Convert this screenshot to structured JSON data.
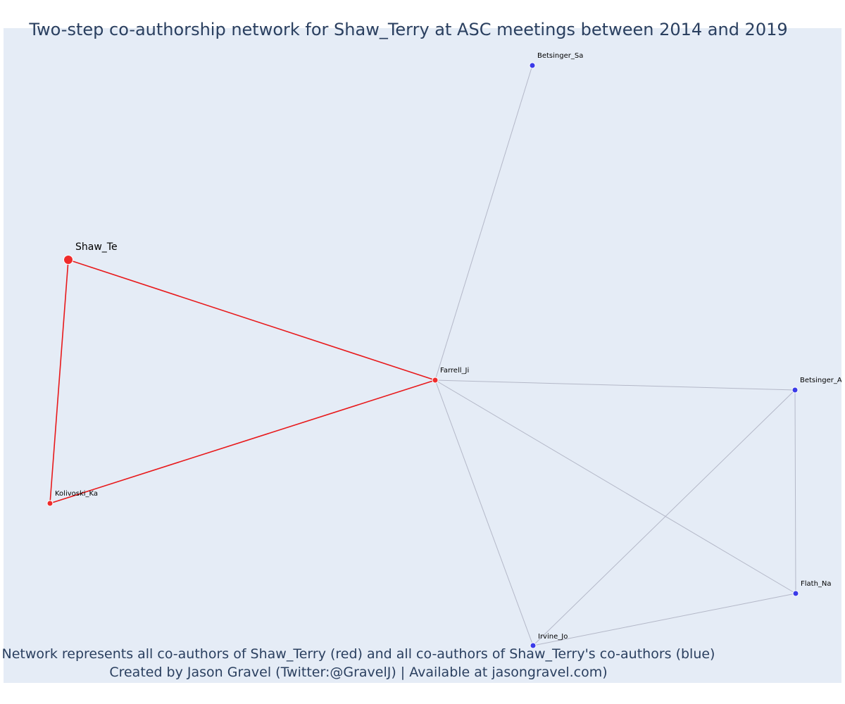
{
  "title": "Two-step co-authorship network for Shaw_Terry at ASC meetings between 2014 and 2019",
  "footer": {
    "line1": "Network represents all co-authors of Shaw_Terry (red) and all co-authors of Shaw_Terry's co-authors (blue)",
    "line2": "Created by Jason Gravel (Twitter:@GravelJ) | Available at jasongravel.com)"
  },
  "colors": {
    "background": "#e5ecf6",
    "focal": "#ef2b2b",
    "coauthor": "#ef2b2b",
    "second_step": "#3b3be8",
    "edge_focal": "#e8191b",
    "edge_other": "#b4b8c8"
  },
  "nodes": [
    {
      "id": "Shaw_Te",
      "label": "Shaw_Te",
      "group": "focal"
    },
    {
      "id": "Farrell_Ji",
      "label": "Farrell_Ji",
      "group": "coauthor"
    },
    {
      "id": "Kolivoski_Ka",
      "label": "Kolivoski_Ka",
      "group": "coauthor"
    },
    {
      "id": "Betsinger_Sa",
      "label": "Betsinger_Sa",
      "group": "second_step"
    },
    {
      "id": "Betsinger_Aa",
      "label": "Betsinger_Aa",
      "group": "second_step"
    },
    {
      "id": "Flath_Na",
      "label": "Flath_Na",
      "group": "second_step"
    },
    {
      "id": "Irvine_Jo",
      "label": "Irvine_Jo",
      "group": "second_step"
    }
  ],
  "edges": [
    {
      "source": "Shaw_Te",
      "target": "Farrell_Ji",
      "type": "focal"
    },
    {
      "source": "Shaw_Te",
      "target": "Kolivoski_Ka",
      "type": "focal"
    },
    {
      "source": "Kolivoski_Ka",
      "target": "Farrell_Ji",
      "type": "focal"
    },
    {
      "source": "Farrell_Ji",
      "target": "Betsinger_Sa",
      "type": "other"
    },
    {
      "source": "Farrell_Ji",
      "target": "Betsinger_Aa",
      "type": "other"
    },
    {
      "source": "Farrell_Ji",
      "target": "Irvine_Jo",
      "type": "other"
    },
    {
      "source": "Farrell_Ji",
      "target": "Flath_Na",
      "type": "other"
    },
    {
      "source": "Betsinger_Aa",
      "target": "Flath_Na",
      "type": "other"
    },
    {
      "source": "Betsinger_Aa",
      "target": "Irvine_Jo",
      "type": "other"
    },
    {
      "source": "Irvine_Jo",
      "target": "Flath_Na",
      "type": "other"
    }
  ]
}
